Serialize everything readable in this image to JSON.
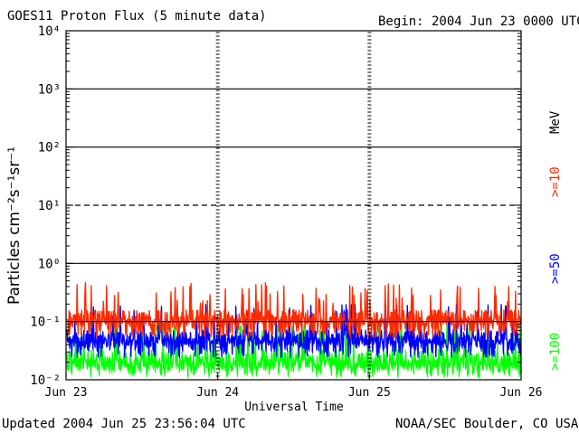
{
  "chart_data": {
    "type": "line",
    "title": "GOES11 Proton Flux (5 minute data)",
    "begin": "Begin: 2004 Jun 23 0000 UTC",
    "xlabel": "Universal Time",
    "ylabel": "Particles cm⁻²s⁻¹sr⁻¹",
    "y_scale": "log",
    "ylim": [
      0.01,
      10000
    ],
    "x_ticks": [
      "Jun 23",
      "Jun 24",
      "Jun 25",
      "Jun 26"
    ],
    "y_ticks": [
      {
        "base": "10",
        "exp": "⁻²",
        "value": 0.01
      },
      {
        "base": "10",
        "exp": "⁻¹",
        "value": 0.1
      },
      {
        "base": "10",
        "exp": "⁰",
        "value": 1
      },
      {
        "base": "10",
        "exp": "¹",
        "value": 10
      },
      {
        "base": "10",
        "exp": "²",
        "value": 100
      },
      {
        "base": "10",
        "exp": "³",
        "value": 1000
      },
      {
        "base": "10",
        "exp": "⁴",
        "value": 10000
      }
    ],
    "threshold_line": 10,
    "legend_unit": "MeV",
    "series": [
      {
        "name": ">=10",
        "color": "#ff2a00",
        "typical": 0.12,
        "peak_max": 0.6
      },
      {
        "name": ">=50",
        "color": "#0000ff",
        "typical": 0.055,
        "peak_max": 0.2
      },
      {
        "name": ">=100",
        "color": "#00ff00",
        "typical": 0.025,
        "peak_max": 0.09
      }
    ]
  },
  "footer": {
    "updated": "Updated 2004 Jun 25 23:56:04 UTC",
    "credit": "NOAA/SEC Boulder, CO USA"
  }
}
